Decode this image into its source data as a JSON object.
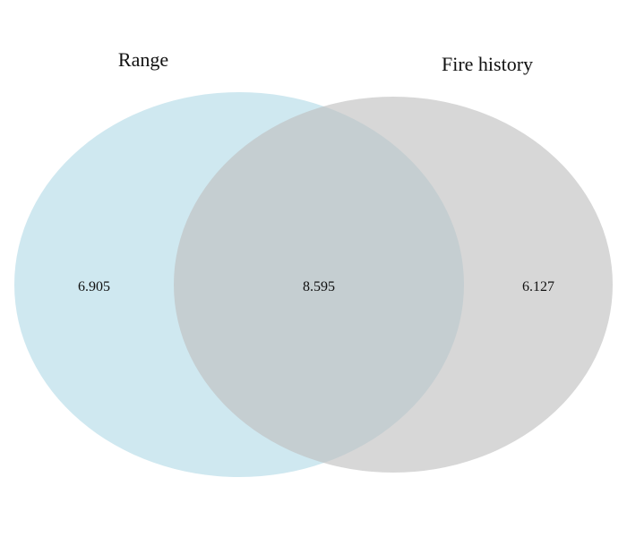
{
  "venn": {
    "sets": [
      {
        "label": "Range",
        "color": "#add8e6"
      },
      {
        "label": "Fire history",
        "color": "#bebebe"
      }
    ],
    "values": {
      "left_only": "6.905",
      "overlap": "8.595",
      "right_only": "6.127"
    }
  }
}
